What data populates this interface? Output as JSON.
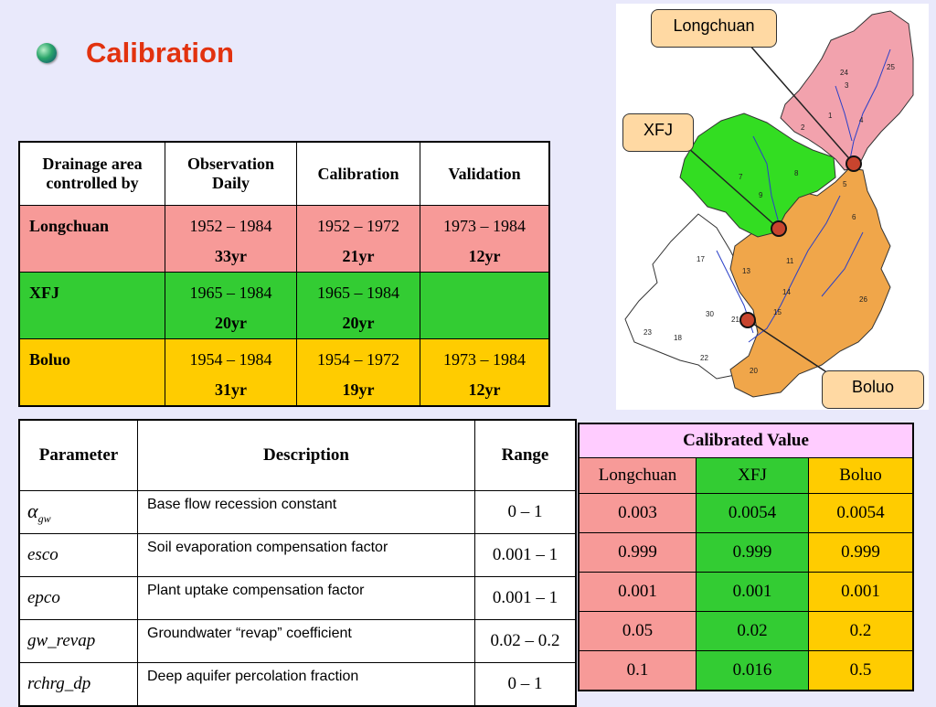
{
  "title": "Calibration",
  "table1": {
    "headers": [
      "Drainage area controlled by",
      "Observation Daily",
      "Calibration",
      "Validation"
    ],
    "rows": [
      {
        "name": "Longchuan",
        "obs": "1952 – 1984",
        "obs_yr": "33yr",
        "cal": "1952 – 1972",
        "cal_yr": "21yr",
        "val": "1973 – 1984",
        "val_yr": "12yr"
      },
      {
        "name": "XFJ",
        "obs": "1965 – 1984",
        "obs_yr": "20yr",
        "cal": "1965 – 1984",
        "cal_yr": "20yr",
        "val": "",
        "val_yr": ""
      },
      {
        "name": "Boluo",
        "obs": "1954 – 1984",
        "obs_yr": "31yr",
        "cal": "1954 – 1972",
        "cal_yr": "19yr",
        "val": "1973 – 1984",
        "val_yr": "12yr"
      }
    ]
  },
  "table2": {
    "headers": [
      "Parameter",
      "Description",
      "Range"
    ],
    "rows": [
      {
        "param_sym": "α",
        "param_sub": "gw",
        "param": "",
        "desc": "Base flow recession constant",
        "range": "0 – 1"
      },
      {
        "param": "esco",
        "desc": "Soil evaporation compensation factor",
        "range": "0.001 – 1"
      },
      {
        "param": "epco",
        "desc": "Plant uptake compensation factor",
        "range": "0.001 – 1"
      },
      {
        "param": "gw_revap",
        "desc": "Groundwater “revap” coefficient",
        "range": "0.02 – 0.2"
      },
      {
        "param": "rchrg_dp",
        "desc": "Deep aquifer percolation fraction",
        "range": "0 – 1"
      }
    ]
  },
  "table3": {
    "header": "Calibrated Value",
    "columns": [
      "Longchuan",
      "XFJ",
      "Boluo"
    ],
    "rows": [
      [
        "0.003",
        "0.0054",
        "0.0054"
      ],
      [
        "0.999",
        "0.999",
        "0.999"
      ],
      [
        "0.001",
        "0.001",
        "0.001"
      ],
      [
        "0.05",
        "0.02",
        "0.2"
      ],
      [
        "0.1",
        "0.016",
        "0.5"
      ]
    ]
  },
  "map": {
    "callouts": [
      "Longchuan",
      "XFJ",
      "Boluo"
    ],
    "subbasin_labels": [
      "25",
      "24",
      "1",
      "2",
      "3",
      "4",
      "5",
      "6",
      "7",
      "8",
      "9",
      "11",
      "13",
      "14",
      "15",
      "17",
      "18",
      "20",
      "21",
      "22",
      "23",
      "26",
      "30"
    ]
  },
  "colors": {
    "longchuan": "#f79a98",
    "xfj": "#33cc33",
    "boluo": "#ffcc00",
    "header_pink": "#ffccff",
    "title": "#e2320f",
    "background": "#e9e9fb"
  }
}
